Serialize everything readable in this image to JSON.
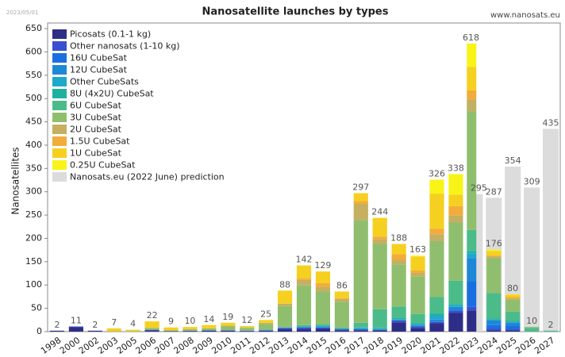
{
  "chart_data": {
    "type": "stacked_bar",
    "title": "Nanosatellite launches by types",
    "date": "2023/05/01",
    "source": "www.nanosats.eu",
    "y_label": "Nanosatellites",
    "categories": [
      "1998",
      "2000",
      "2002",
      "2003",
      "2005",
      "2006",
      "2007",
      "2008",
      "2009",
      "2010",
      "2011",
      "2012",
      "2013",
      "2014",
      "2015",
      "2016",
      "2017",
      "2018",
      "2019",
      "2020",
      "2021",
      "2022",
      "2023",
      "2024",
      "2025",
      "2026",
      "2027"
    ],
    "totals": [
      2,
      11,
      2,
      7,
      4,
      22,
      9,
      10,
      14,
      19,
      12,
      25,
      88,
      142,
      129,
      86,
      297,
      244,
      188,
      163,
      326,
      338,
      618,
      176,
      80,
      10,
      2
    ],
    "series": [
      {
        "name": "Picosats (0.1-1 kg)",
        "color": "#2e2e86",
        "values": [
          2,
          10,
          2,
          0,
          0,
          3,
          1,
          1,
          2,
          2,
          1,
          2,
          5,
          5,
          6,
          3,
          3,
          3,
          20,
          8,
          18,
          40,
          45,
          3,
          3,
          0,
          0
        ]
      },
      {
        "name": "Other nanosats (1-10 kg)",
        "color": "#3a4fcf",
        "values": [
          0,
          1,
          0,
          0,
          0,
          1,
          0,
          1,
          1,
          1,
          1,
          1,
          3,
          4,
          3,
          2,
          2,
          1,
          4,
          3,
          3,
          5,
          8,
          3,
          2,
          0,
          0
        ]
      },
      {
        "name": "16U CubeSat",
        "color": "#1a6fe0",
        "values": [
          0,
          0,
          0,
          0,
          0,
          0,
          0,
          0,
          0,
          0,
          0,
          0,
          0,
          0,
          0,
          0,
          0,
          0,
          0,
          0,
          0,
          0,
          55,
          8,
          8,
          0,
          0
        ]
      },
      {
        "name": "12U CubeSat",
        "color": "#1e88d8",
        "values": [
          0,
          0,
          0,
          0,
          0,
          0,
          0,
          0,
          0,
          0,
          0,
          0,
          0,
          0,
          0,
          0,
          0,
          0,
          0,
          2,
          5,
          8,
          50,
          10,
          6,
          0,
          0
        ]
      },
      {
        "name": "Other CubeSats",
        "color": "#1ea8cc",
        "values": [
          0,
          0,
          0,
          0,
          0,
          0,
          0,
          0,
          0,
          0,
          0,
          1,
          1,
          2,
          3,
          1,
          3,
          3,
          3,
          3,
          8,
          3,
          10,
          2,
          2,
          0,
          0
        ]
      },
      {
        "name": "8U (4x2U) CubeSat",
        "color": "#20b0a0",
        "values": [
          0,
          0,
          0,
          0,
          0,
          0,
          0,
          0,
          0,
          0,
          0,
          0,
          0,
          0,
          0,
          0,
          1,
          1,
          2,
          2,
          5,
          3,
          5,
          2,
          2,
          0,
          0
        ]
      },
      {
        "name": "6U CubeSat",
        "color": "#4cbb8a",
        "values": [
          0,
          0,
          0,
          0,
          0,
          0,
          0,
          0,
          0,
          0,
          0,
          0,
          1,
          3,
          4,
          3,
          10,
          40,
          25,
          20,
          35,
          50,
          45,
          55,
          20,
          8,
          2
        ]
      },
      {
        "name": "3U CubeSat",
        "color": "#8fbf6e",
        "values": [
          0,
          0,
          0,
          1,
          1,
          4,
          2,
          3,
          4,
          8,
          6,
          12,
          45,
          85,
          70,
          55,
          220,
          140,
          90,
          80,
          120,
          125,
          255,
          75,
          25,
          2,
          0
        ]
      },
      {
        "name": "2U CubeSat",
        "color": "#c4b060",
        "values": [
          0,
          0,
          0,
          0,
          0,
          0,
          0,
          0,
          0,
          2,
          1,
          3,
          5,
          12,
          10,
          6,
          35,
          10,
          10,
          8,
          15,
          15,
          25,
          3,
          3,
          0,
          0
        ]
      },
      {
        "name": "1.5U CubeSat",
        "color": "#f2ac3c",
        "values": [
          0,
          0,
          0,
          0,
          0,
          0,
          0,
          0,
          0,
          0,
          0,
          0,
          0,
          3,
          8,
          2,
          6,
          6,
          12,
          5,
          12,
          20,
          20,
          2,
          3,
          0,
          0
        ]
      },
      {
        "name": "1U CubeSat",
        "color": "#f6d020",
        "values": [
          0,
          0,
          0,
          6,
          3,
          14,
          6,
          5,
          7,
          6,
          3,
          6,
          28,
          28,
          25,
          14,
          17,
          40,
          22,
          30,
          75,
          25,
          50,
          10,
          5,
          0,
          0
        ]
      },
      {
        "name": "0.25U CubeSat",
        "color": "#f8f418",
        "values": [
          0,
          0,
          0,
          0,
          0,
          0,
          0,
          0,
          0,
          0,
          0,
          0,
          0,
          0,
          0,
          0,
          0,
          0,
          0,
          2,
          30,
          44,
          50,
          3,
          1,
          0,
          0
        ]
      }
    ],
    "prediction": {
      "name": "Nanosats.eu (2022 June) prediction",
      "color": "#dcdcdc",
      "values": [
        null,
        null,
        null,
        null,
        null,
        null,
        null,
        null,
        null,
        null,
        null,
        null,
        null,
        null,
        null,
        null,
        null,
        null,
        null,
        null,
        null,
        null,
        295,
        287,
        354,
        309,
        435
      ]
    },
    "ylim": [
      0,
      662
    ],
    "yticks": [
      0,
      50,
      100,
      150,
      200,
      250,
      300,
      350,
      400,
      450,
      500,
      550,
      600,
      650
    ],
    "grid": false,
    "legend": "upper left"
  }
}
